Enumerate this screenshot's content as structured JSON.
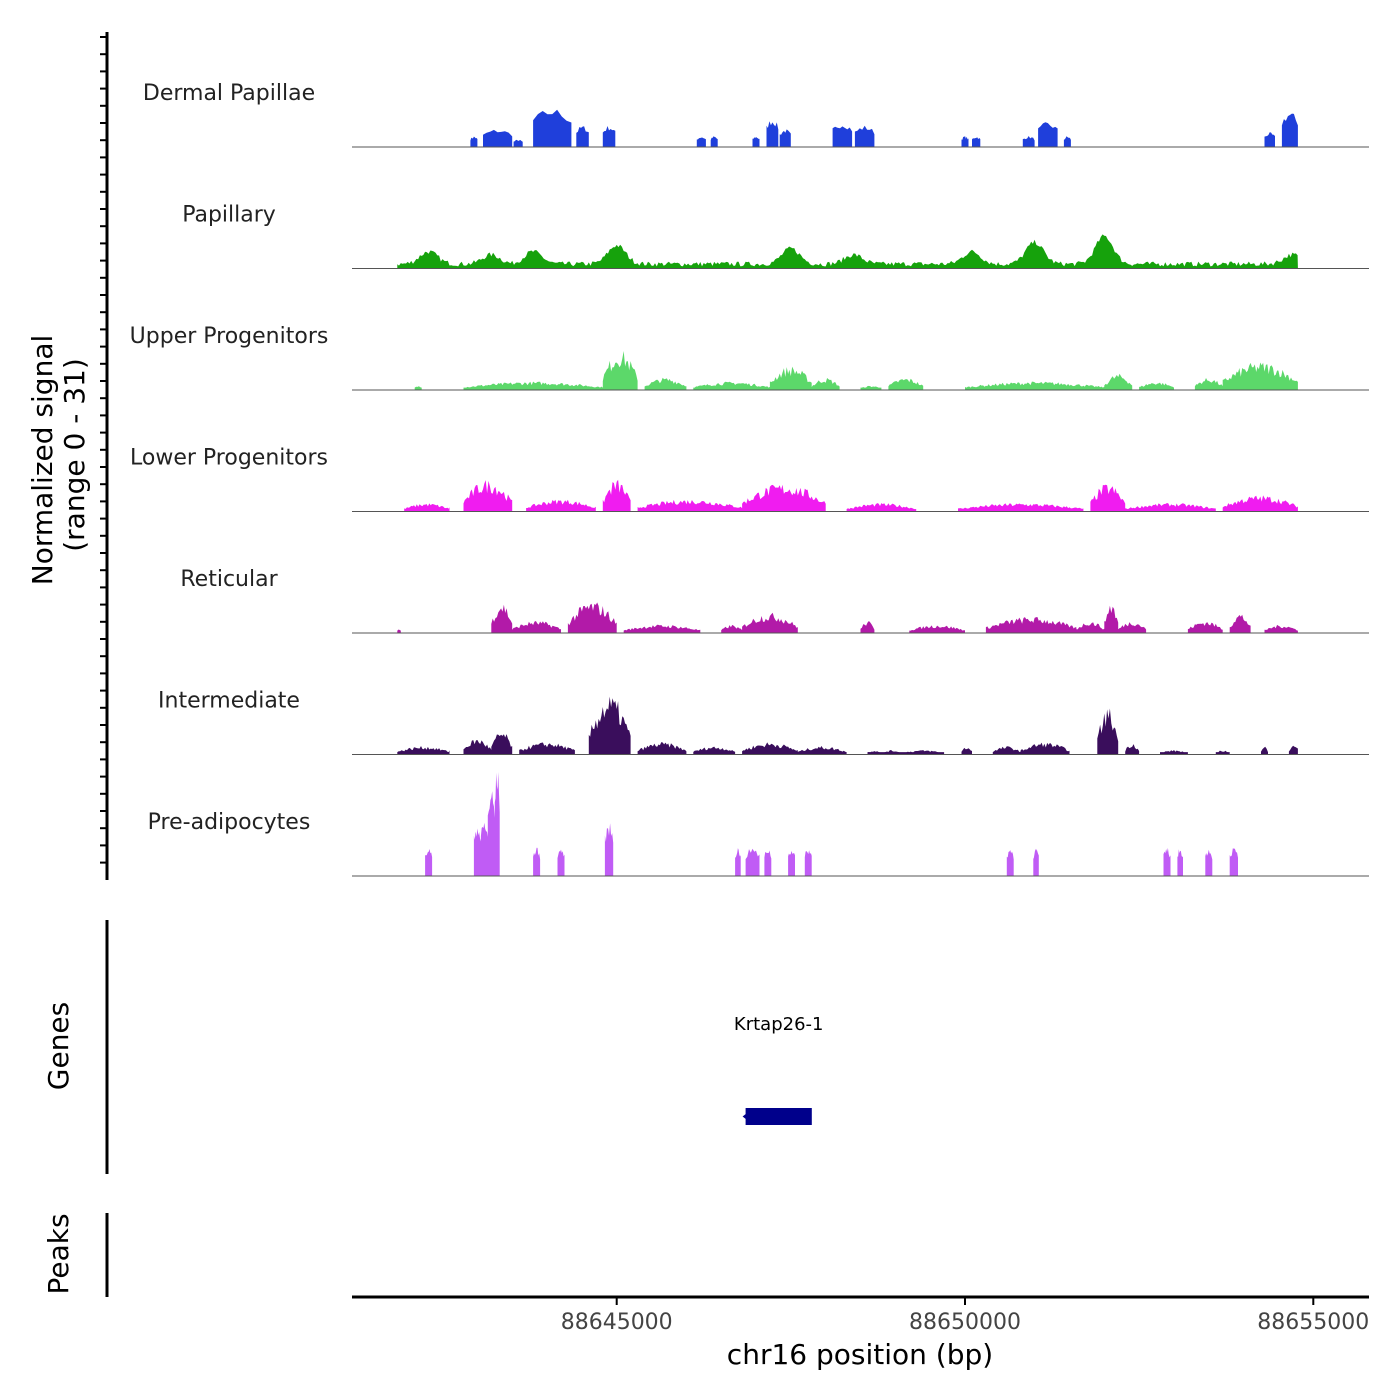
{
  "chart_data": {
    "type": "area",
    "title": "",
    "xlabel": "chr16 position (bp)",
    "ylabel_line1": "Normalized signal",
    "ylabel_line2": "(range 0 - 31)",
    "genes_label": "Genes",
    "peaks_label": "Peaks",
    "xlim": [
      88641200,
      88655800
    ],
    "ylim": [
      0,
      31
    ],
    "x_ticks": [
      88645000,
      88650000,
      88655000
    ],
    "x_tick_labels": [
      "88645000",
      "88650000",
      "88655000"
    ],
    "signal_end": 88654780,
    "tracks": [
      {
        "name": "Dermal Papillae",
        "color": "#1f3fdb",
        "style": "sparse",
        "segments": [
          [
            88642900,
            88643000,
            3
          ],
          [
            88643080,
            88643500,
            5
          ],
          [
            88643520,
            88643650,
            2
          ],
          [
            88643800,
            88644350,
            11
          ],
          [
            88644420,
            88644600,
            6
          ],
          [
            88644800,
            88644980,
            6
          ],
          [
            88646150,
            88646280,
            3
          ],
          [
            88646350,
            88646450,
            3
          ],
          [
            88646950,
            88647050,
            3
          ],
          [
            88647150,
            88647320,
            8
          ],
          [
            88647340,
            88647500,
            5
          ],
          [
            88648100,
            88648380,
            7
          ],
          [
            88648420,
            88648700,
            6
          ],
          [
            88649950,
            88650050,
            3
          ],
          [
            88650100,
            88650220,
            3
          ],
          [
            88650830,
            88651000,
            3
          ],
          [
            88651050,
            88651330,
            7
          ],
          [
            88651420,
            88651520,
            3
          ],
          [
            88654300,
            88654450,
            4
          ],
          [
            88654550,
            88654780,
            10
          ]
        ]
      },
      {
        "name": "Papillary",
        "color": "#16a20c",
        "style": "continuous",
        "segments": [
          [
            88641850,
            88654780,
            1.3
          ]
        ],
        "peaks": [
          [
            88642300,
            4
          ],
          [
            88643200,
            3
          ],
          [
            88643800,
            4
          ],
          [
            88645000,
            6
          ],
          [
            88647500,
            5
          ],
          [
            88648400,
            3
          ],
          [
            88650100,
            4
          ],
          [
            88651000,
            7
          ],
          [
            88652000,
            9
          ],
          [
            88654700,
            3
          ]
        ]
      },
      {
        "name": "Upper Progenitors",
        "color": "#5cd86a",
        "style": "patchy",
        "segments": [
          [
            88642100,
            88642200,
            1
          ],
          [
            88642800,
            88644800,
            2
          ],
          [
            88644800,
            88645300,
            10
          ],
          [
            88645400,
            88646000,
            3
          ],
          [
            88646100,
            88647200,
            2
          ],
          [
            88647200,
            88647800,
            6
          ],
          [
            88647800,
            88648200,
            3
          ],
          [
            88648500,
            88648800,
            1
          ],
          [
            88648900,
            88649400,
            3
          ],
          [
            88650000,
            88652000,
            2
          ],
          [
            88652000,
            88652400,
            4
          ],
          [
            88652500,
            88653000,
            2
          ],
          [
            88653300,
            88653700,
            3
          ],
          [
            88653700,
            88654780,
            7
          ]
        ]
      },
      {
        "name": "Lower Progenitors",
        "color": "#f01cf0",
        "style": "patchy",
        "segments": [
          [
            88641950,
            88642600,
            2
          ],
          [
            88642800,
            88643500,
            8
          ],
          [
            88643700,
            88644700,
            3
          ],
          [
            88644800,
            88645200,
            8
          ],
          [
            88645300,
            88646800,
            3
          ],
          [
            88646800,
            88648000,
            7
          ],
          [
            88648300,
            88649300,
            2
          ],
          [
            88649900,
            88651700,
            2
          ],
          [
            88651800,
            88652300,
            7
          ],
          [
            88652300,
            88653600,
            2
          ],
          [
            88653700,
            88654780,
            4
          ]
        ]
      },
      {
        "name": "Reticular",
        "color": "#b21aa8",
        "style": "patchy",
        "segments": [
          [
            88641850,
            88641900,
            1
          ],
          [
            88643200,
            88643500,
            8
          ],
          [
            88643500,
            88644200,
            3
          ],
          [
            88644300,
            88645000,
            8
          ],
          [
            88645100,
            88646200,
            2
          ],
          [
            88646500,
            88646800,
            2
          ],
          [
            88646800,
            88647600,
            5
          ],
          [
            88648500,
            88648700,
            3
          ],
          [
            88649200,
            88650000,
            2
          ],
          [
            88650300,
            88651600,
            4
          ],
          [
            88651600,
            88652000,
            3
          ],
          [
            88652000,
            88652200,
            8
          ],
          [
            88652200,
            88652600,
            3
          ],
          [
            88653200,
            88653700,
            3
          ],
          [
            88653800,
            88654100,
            5
          ],
          [
            88654300,
            88654780,
            2
          ]
        ]
      },
      {
        "name": "Intermediate",
        "color": "#3a0e5c",
        "style": "patchy",
        "segments": [
          [
            88641850,
            88642600,
            2
          ],
          [
            88642800,
            88643200,
            4
          ],
          [
            88643200,
            88643500,
            6
          ],
          [
            88643600,
            88644400,
            3
          ],
          [
            88644600,
            88645200,
            15
          ],
          [
            88645300,
            88646000,
            3
          ],
          [
            88646100,
            88646700,
            2
          ],
          [
            88646800,
            88647600,
            3
          ],
          [
            88647600,
            88648300,
            2
          ],
          [
            88648600,
            88648800,
            1
          ],
          [
            88648800,
            88649100,
            1
          ],
          [
            88649100,
            88649700,
            1
          ],
          [
            88649950,
            88650100,
            2
          ],
          [
            88650400,
            88650800,
            2
          ],
          [
            88650800,
            88651500,
            3
          ],
          [
            88651900,
            88652200,
            12
          ],
          [
            88652300,
            88652500,
            3
          ],
          [
            88652800,
            88653200,
            1
          ],
          [
            88653600,
            88653800,
            1
          ],
          [
            88654250,
            88654350,
            2
          ],
          [
            88654650,
            88654780,
            3
          ]
        ]
      },
      {
        "name": "Pre-adipocytes",
        "color": "#c05cf5",
        "style": "sparse",
        "segments": [
          [
            88642250,
            88642350,
            8
          ],
          [
            88642950,
            88643050,
            15
          ],
          [
            88643050,
            88643150,
            16
          ],
          [
            88643150,
            88643250,
            25
          ],
          [
            88643250,
            88643320,
            31
          ],
          [
            88643800,
            88643900,
            8
          ],
          [
            88644150,
            88644250,
            8
          ],
          [
            88644830,
            88644950,
            15
          ],
          [
            88646700,
            88646780,
            8
          ],
          [
            88646850,
            88647050,
            8
          ],
          [
            88647120,
            88647220,
            8
          ],
          [
            88647460,
            88647560,
            8
          ],
          [
            88647700,
            88647800,
            8
          ],
          [
            88650600,
            88650700,
            8
          ],
          [
            88650980,
            88651060,
            8
          ],
          [
            88652850,
            88652950,
            8
          ],
          [
            88653050,
            88653130,
            8
          ],
          [
            88653450,
            88653550,
            8
          ],
          [
            88653800,
            88653920,
            8
          ]
        ]
      }
    ],
    "genes": [
      {
        "name": "Krtap26-1",
        "start": 88646850,
        "end": 88647800,
        "strand": "-",
        "color": "#00008b"
      }
    ],
    "peaks": []
  }
}
